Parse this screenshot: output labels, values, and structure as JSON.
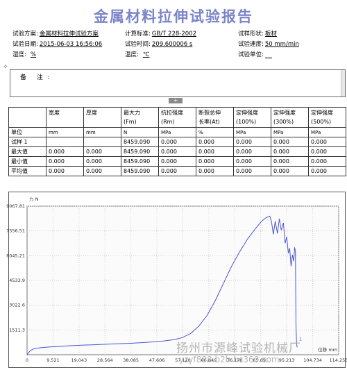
{
  "report": {
    "title": "金属材料拉伸试验报告"
  },
  "info": {
    "scheme_label": "试验方案:",
    "scheme_value": "金属材料拉伸试验方案",
    "standard_label": "计算标准:",
    "standard_value": "GB/T 228-2002",
    "shape_label": "试样形状:",
    "shape_value": "板材",
    "date_label": "试验日期:",
    "date_value": "2015-06-03 16:56:06",
    "time_label": "试验时间:",
    "time_value": "209.600006 s",
    "speed_label": "试验速度:",
    "speed_value": "50 mm/min",
    "humidity_label": "湿度:",
    "humidity_value": "%",
    "temp_label": "温度:",
    "temp_value": "℃",
    "unit_label": "试验单位:",
    "unit_value": ""
  },
  "remarks": {
    "label": "备 注:",
    "value": ""
  },
  "splitter": {
    "glyph": "+"
  },
  "table": {
    "headers": [
      "",
      "宽度",
      "厚度",
      "最大力\n(Fm)",
      "抗拉强度\n(Rm)",
      "断裂总伸\n长率(At)",
      "定伸强度\n(100%)",
      "定伸强度\n(300%)",
      "定伸强度\n(500%)"
    ],
    "rows": [
      [
        "单位",
        "mm",
        "mm",
        "N",
        "MPa",
        "%",
        "MPa",
        "MPa",
        "MPa"
      ],
      [
        "试样 1",
        "",
        "",
        "8459.090",
        "0.000",
        "0.000",
        "0.000",
        "0.000",
        "0.000"
      ],
      [
        "最大值",
        "0.000",
        "0.000",
        "8459.090",
        "0.000",
        "0.000",
        "0.000",
        "0.000",
        "0.000"
      ],
      [
        "最小值",
        "0.000",
        "0.000",
        "8459.090",
        "0.000",
        "0.000",
        "0.000",
        "0.000",
        "0.000"
      ],
      [
        "平均值",
        "0.000",
        "0.000",
        "8459.090",
        "0.000",
        "0.000",
        "0.000",
        "0.000",
        "0.000"
      ]
    ]
  },
  "chart_data": {
    "type": "line",
    "ylabel": "力 N",
    "xlabel": "位移 mm",
    "y_ticks": [
      "1511.3",
      "3022.6",
      "4533.9",
      "6045.21",
      "7556.51",
      "9067.81"
    ],
    "y_tick_values": [
      1511.3,
      3022.6,
      4533.9,
      6045.21,
      7556.51,
      9067.81
    ],
    "x_ticks": [
      "0",
      "9.521",
      "19.043",
      "28.564",
      "38.085",
      "47.606",
      "57.128",
      "66.649",
      "76.170",
      "85.691",
      "95.213",
      "104.734",
      "114.255"
    ],
    "x_tick_values": [
      0,
      9.521,
      19.043,
      28.564,
      38.085,
      47.606,
      57.128,
      66.649,
      76.17,
      85.691,
      95.213,
      104.734,
      114.255
    ],
    "xlim": [
      0,
      114.255
    ],
    "ylim": [
      0,
      9067.81
    ],
    "grid": true,
    "line_color": "#4b55d0",
    "series": [
      {
        "name": "",
        "x": [
          0,
          0.5,
          1.2,
          2,
          3,
          5,
          8,
          12,
          16,
          20,
          26,
          32,
          38,
          44,
          50,
          54,
          57,
          60,
          63,
          66,
          69,
          72,
          75,
          78,
          81,
          84,
          86,
          87.5,
          88.3,
          89,
          89.6,
          90.3,
          91,
          91.8,
          92.5,
          93.2,
          94,
          94.6,
          95.2,
          95.8,
          96.3,
          96.8,
          97.3,
          97.8,
          98.1,
          98.4,
          98.6,
          98.8,
          99
        ],
        "y": [
          0,
          120,
          250,
          330,
          380,
          430,
          470,
          510,
          550,
          580,
          620,
          660,
          700,
          760,
          840,
          920,
          1050,
          1300,
          1750,
          2400,
          3300,
          4350,
          5400,
          6300,
          7100,
          7750,
          8150,
          8350,
          8420,
          8459.09,
          8150,
          7350,
          8150,
          7400,
          8300,
          7600,
          8050,
          6800,
          7200,
          6200,
          6500,
          5400,
          6100,
          5700,
          6550,
          6300,
          1800,
          750,
          450
        ]
      }
    ],
    "end_marker": "1"
  },
  "watermark": {
    "line1": "扬州市源峰试验机械厂",
    "line2": "yzyf888.b2b.hc360.com"
  }
}
